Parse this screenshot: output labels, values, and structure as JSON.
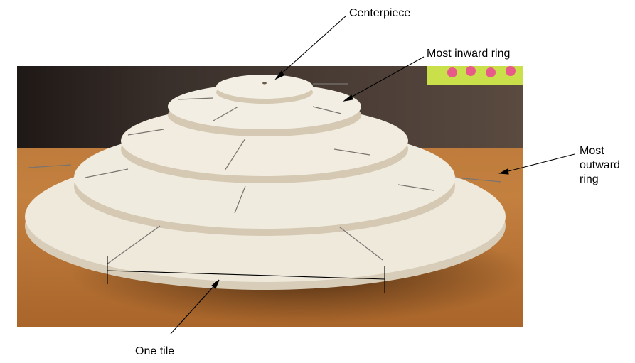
{
  "labels": {
    "centerpiece": "Centerpiece",
    "most_inward_ring": "Most inward ring",
    "most_outward_ring": "Most outward ring",
    "one_tile": "One tile"
  },
  "colors": {
    "wood": "#eee8da",
    "wood_edge": "#d6cbb5",
    "table": "#c07a3a",
    "background": "#2a2220"
  }
}
